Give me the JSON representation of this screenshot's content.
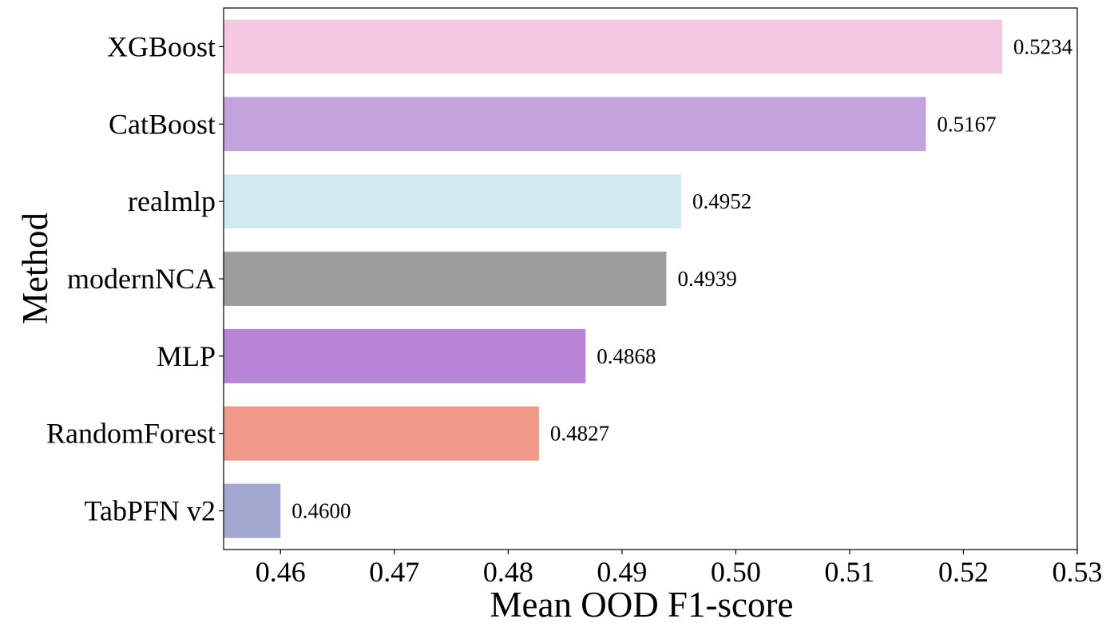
{
  "chart_data": {
    "type": "bar",
    "orientation": "horizontal",
    "title": "",
    "xlabel": "Mean OOD F1-score",
    "ylabel": "Method",
    "xlim": [
      0.455,
      0.53
    ],
    "xticks": [
      0.46,
      0.47,
      0.48,
      0.49,
      0.5,
      0.51,
      0.52,
      0.53
    ],
    "xtick_labels": [
      "0.46",
      "0.47",
      "0.48",
      "0.49",
      "0.50",
      "0.51",
      "0.52",
      "0.53"
    ],
    "categories": [
      "XGBoost",
      "CatBoost",
      "realmlp",
      "modernNCA",
      "MLP",
      "RandomForest",
      "TabPFN v2"
    ],
    "values": [
      0.5234,
      0.5167,
      0.4952,
      0.4939,
      0.4868,
      0.4827,
      0.46
    ],
    "value_labels": [
      "0.5234",
      "0.5167",
      "0.4952",
      "0.4939",
      "0.4868",
      "0.4827",
      "0.4600"
    ],
    "colors": [
      "#f5c8e2",
      "#c4a3dd",
      "#d1eaf1",
      "#9d9d9d",
      "#b783d5",
      "#f0988a",
      "#a2a8d0"
    ],
    "grid": false,
    "legend": "none"
  }
}
